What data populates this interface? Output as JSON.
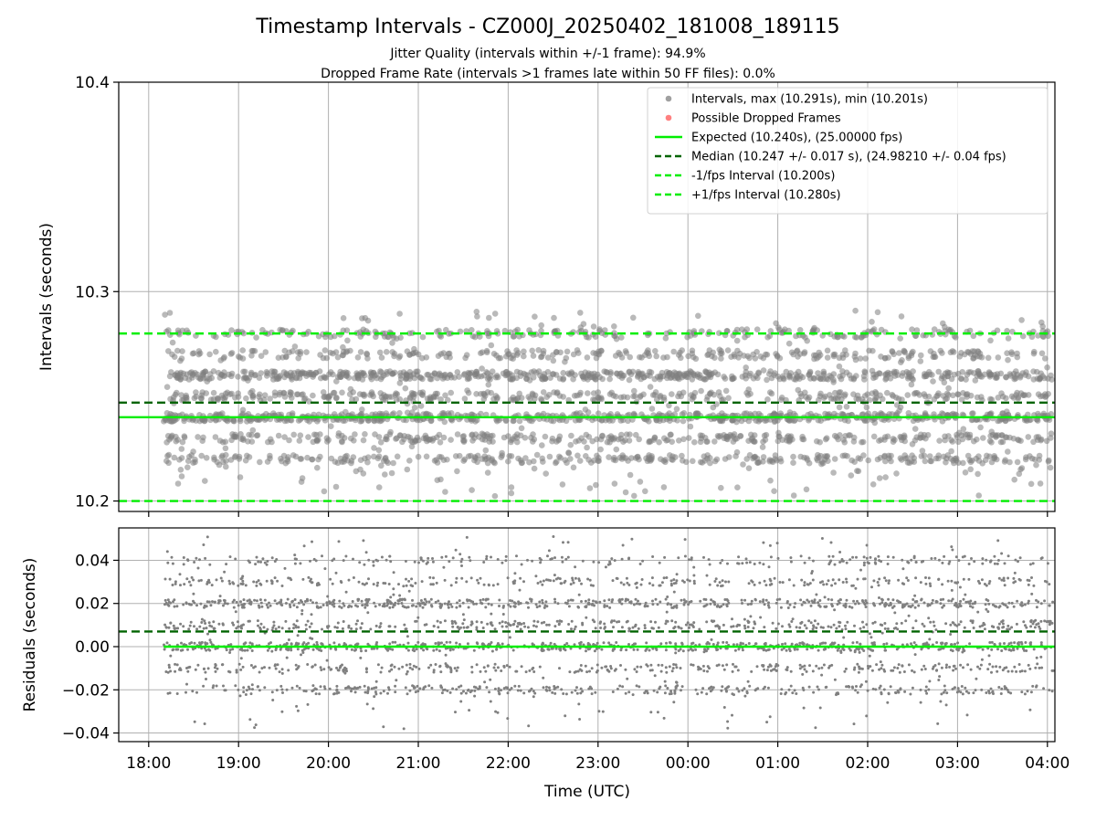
{
  "colors": {
    "points": "#808080",
    "dropped": "#ff5555",
    "expected": "#00ee00",
    "median": "#006400",
    "bounds": "#00ee00",
    "grid": "#b0b0b0"
  },
  "chart_data": [
    {
      "type": "scatter",
      "title": "Timestamp Intervals - CZ000J_20250402_181008_189115",
      "subtitle_lines": [
        "Jitter Quality (intervals within +/-1 frame): 94.9%",
        "Dropped Frame Rate (intervals >1 frames late within 50 FF files): 0.0%"
      ],
      "xlabel": "",
      "ylabel": "Intervals (seconds)",
      "ylim": [
        10.195,
        10.4
      ],
      "yticks": [
        10.2,
        10.3,
        10.4
      ],
      "ytick_labels": [
        "10.2",
        "10.3",
        "10.4"
      ],
      "grid": true,
      "legend_position": "top-right",
      "legend": [
        {
          "label": "Intervals, max (10.291s), min (10.201s)",
          "kind": "dot",
          "color": "#808080"
        },
        {
          "label": "Possible Dropped Frames",
          "kind": "dot",
          "color": "#ff5555"
        },
        {
          "label": "Expected (10.240s), (25.00000 fps)",
          "kind": "solid",
          "color": "#00ee00"
        },
        {
          "label": "Median (10.247 +/- 0.017 s), (24.98210 +/- 0.04 fps)",
          "kind": "dashed",
          "color": "#006400"
        },
        {
          "label": "-1/fps Interval (10.200s)",
          "kind": "dashed",
          "color": "#00ee00"
        },
        {
          "label": "+1/fps Interval (10.280s)",
          "kind": "dashed",
          "color": "#00ee00"
        }
      ],
      "reference_lines": {
        "expected": 10.24,
        "median": 10.247,
        "minus_1fps": 10.2,
        "plus_1fps": 10.28
      },
      "series": [
        {
          "name": "Intervals, max (10.291s), min (10.201s)",
          "x_range": [
            "18:10",
            "04:06"
          ],
          "levels": [
            10.22,
            10.23,
            10.24,
            10.25,
            10.26,
            10.27,
            10.28
          ],
          "level_weights": [
            0.12,
            0.12,
            0.24,
            0.12,
            0.22,
            0.1,
            0.08
          ],
          "min": 10.201,
          "max": 10.291,
          "approx_count": 3000
        }
      ]
    },
    {
      "type": "scatter",
      "xlabel": "Time (UTC)",
      "ylabel": "Residuals (seconds)",
      "xlim": [
        "17:40",
        "04:05"
      ],
      "xticks": [
        "18:00",
        "19:00",
        "20:00",
        "21:00",
        "22:00",
        "23:00",
        "00:00",
        "01:00",
        "02:00",
        "03:00",
        "04:00"
      ],
      "ylim": [
        -0.044,
        0.055
      ],
      "yticks": [
        -0.04,
        -0.02,
        0.0,
        0.02,
        0.04
      ],
      "ytick_labels": [
        "−0.04",
        "−0.02",
        "0.00",
        "0.02",
        "0.04"
      ],
      "grid": true,
      "reference_lines": {
        "zero": 0.0,
        "median_offset": 0.007
      },
      "series": [
        {
          "name": "Residuals",
          "x_range": [
            "18:10",
            "04:06"
          ],
          "levels": [
            -0.02,
            -0.01,
            0.0,
            0.01,
            0.02,
            0.03,
            0.04
          ],
          "level_weights": [
            0.12,
            0.12,
            0.24,
            0.12,
            0.22,
            0.1,
            0.08
          ],
          "min": -0.039,
          "max": 0.051,
          "approx_count": 3000
        }
      ]
    }
  ]
}
